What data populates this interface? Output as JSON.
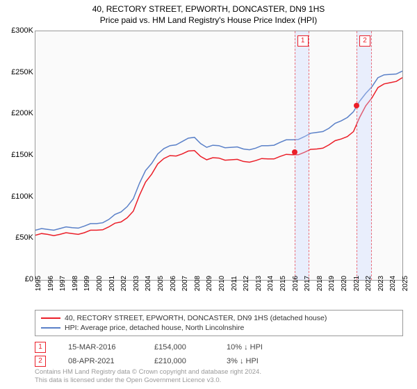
{
  "title": "40, RECTORY STREET, EPWORTH, DONCASTER, DN9 1HS",
  "subtitle": "Price paid vs. HM Land Registry's House Price Index (HPI)",
  "chart": {
    "type": "line",
    "background_color": "#fafafa",
    "grid_color": "#cccccc",
    "border_color": "#999999",
    "ylim": [
      0,
      300000
    ],
    "ytick_step": 50000,
    "yticks": [
      "£0",
      "£50K",
      "£100K",
      "£150K",
      "£200K",
      "£250K",
      "£300K"
    ],
    "xticks": [
      "1995",
      "1996",
      "1997",
      "1998",
      "1999",
      "2000",
      "2001",
      "2002",
      "2003",
      "2004",
      "2005",
      "2006",
      "2007",
      "2008",
      "2009",
      "2010",
      "2011",
      "2012",
      "2013",
      "2014",
      "2015",
      "2016",
      "2017",
      "2018",
      "2019",
      "2020",
      "2021",
      "2022",
      "2023",
      "2024",
      "2025"
    ],
    "series": [
      {
        "name": "40, RECTORY STREET, EPWORTH, DONCASTER, DN9 1HS (detached house)",
        "color": "#eb1e28",
        "width": 1.6,
        "values": [
          54,
          55,
          55,
          56,
          57,
          60,
          64,
          70,
          83,
          118,
          140,
          150,
          152,
          156,
          145,
          147,
          145,
          143,
          144,
          146,
          149,
          151,
          154,
          158,
          163,
          170,
          179,
          210,
          232,
          238,
          244
        ]
      },
      {
        "name": "HPI: Average price, detached house, North Lincolnshire",
        "color": "#5a80c8",
        "width": 1.4,
        "values": [
          60,
          61,
          62,
          63,
          65,
          68,
          73,
          82,
          98,
          132,
          152,
          162,
          167,
          172,
          160,
          162,
          160,
          158,
          159,
          162,
          166,
          169,
          173,
          178,
          183,
          192,
          203,
          225,
          244,
          248,
          252
        ]
      }
    ],
    "bands": [
      {
        "label": "1",
        "x_start": 21.2,
        "x_end": 22.4
      },
      {
        "label": "2",
        "x_start": 26.25,
        "x_end": 27.5
      }
    ],
    "sale_points": [
      {
        "x": 21.2,
        "y": 154
      },
      {
        "x": 26.25,
        "y": 210
      }
    ]
  },
  "legend": {
    "items": [
      {
        "color": "#eb1e28",
        "label": "40, RECTORY STREET, EPWORTH, DONCASTER, DN9 1HS (detached house)"
      },
      {
        "color": "#5a80c8",
        "label": "HPI: Average price, detached house, North Lincolnshire"
      }
    ]
  },
  "sales": [
    {
      "n": "1",
      "date": "15-MAR-2016",
      "price": "£154,000",
      "delta": "10% ↓ HPI"
    },
    {
      "n": "2",
      "date": "08-APR-2021",
      "price": "£210,000",
      "delta": "3% ↓ HPI"
    }
  ],
  "credits": {
    "line1": "Contains HM Land Registry data © Crown copyright and database right 2024.",
    "line2": "This data is licensed under the Open Government Licence v3.0."
  }
}
